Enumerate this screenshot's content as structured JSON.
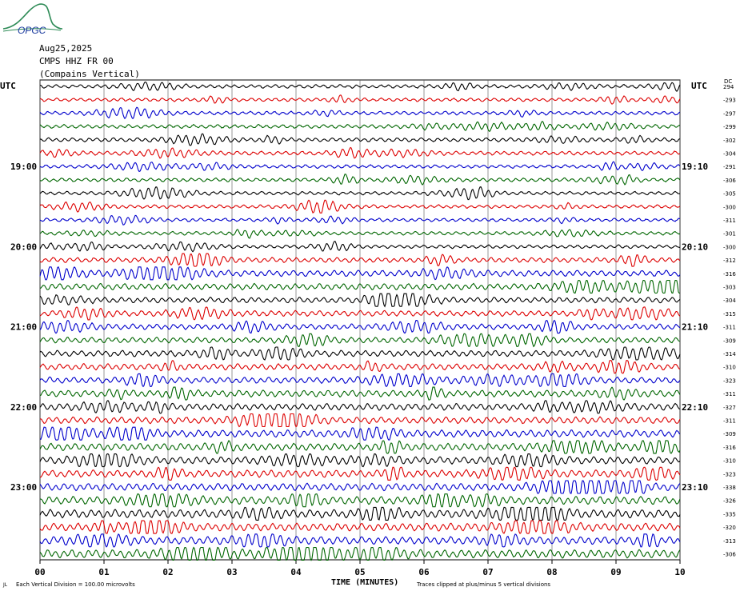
{
  "header": {
    "date": "Aug25,2025",
    "station": "CMPS HHZ FR 00",
    "location": "(Compains Vertical)"
  },
  "logo": {
    "text": "OPGC"
  },
  "chart_data": {
    "type": "line",
    "title": "CMPS HHZ FR 00",
    "subtitle": "(Compains Vertical)",
    "xlabel": "TIME (MINUTES)",
    "x_ticks": [
      "00",
      "01",
      "02",
      "03",
      "04",
      "05",
      "06",
      "07",
      "08",
      "09",
      "10"
    ],
    "xlim": [
      0,
      10
    ],
    "left_axis_title": "UTC",
    "right_axis_title": "UTC",
    "right_axis_extra_label": "DC",
    "left_time_labels": [
      "19:00",
      "20:00",
      "21:00",
      "22:00",
      "23:00"
    ],
    "right_time_labels": [
      "19:10",
      "20:10",
      "21:10",
      "22:10",
      "23:10"
    ],
    "time_label_trace_index": [
      6,
      12,
      18,
      24,
      30
    ],
    "trace_colors": [
      "#000000",
      "#dd0000",
      "#0000cc",
      "#006600"
    ],
    "dc_offsets": [
      "294",
      "-293",
      "-297",
      "-299",
      "-302",
      "-304",
      "-291",
      "-306",
      "-305",
      "-300",
      "-311",
      "-301",
      "-300",
      "-312",
      "-316",
      "-303",
      "-304",
      "-315",
      "-311",
      "-309",
      "-314",
      "-310",
      "-323",
      "-311",
      "-327",
      "-311",
      "-309",
      "-316",
      "-310",
      "-323",
      "-338",
      "-326",
      "-335",
      "-320",
      "-313",
      "-306"
    ],
    "activity": [
      0.6,
      0.6,
      0.65,
      0.65,
      0.7,
      0.7,
      0.6,
      0.65,
      0.6,
      0.6,
      0.6,
      0.6,
      0.6,
      0.9,
      1.1,
      1.1,
      1.0,
      1.0,
      1.0,
      1.0,
      1.1,
      1.1,
      1.1,
      1.2,
      1.2,
      1.2,
      1.3,
      1.3,
      1.3,
      1.3,
      1.3,
      1.4,
      1.5,
      1.4,
      1.4,
      1.5
    ]
  },
  "footer": {
    "scale_note": "Each Vertical Division =  100.00 microvolts",
    "xlabel": "TIME (MINUTES)",
    "clip_note": "Traces clipped at plus/minus 5 vertical divisions",
    "corner_mark": "JL"
  }
}
